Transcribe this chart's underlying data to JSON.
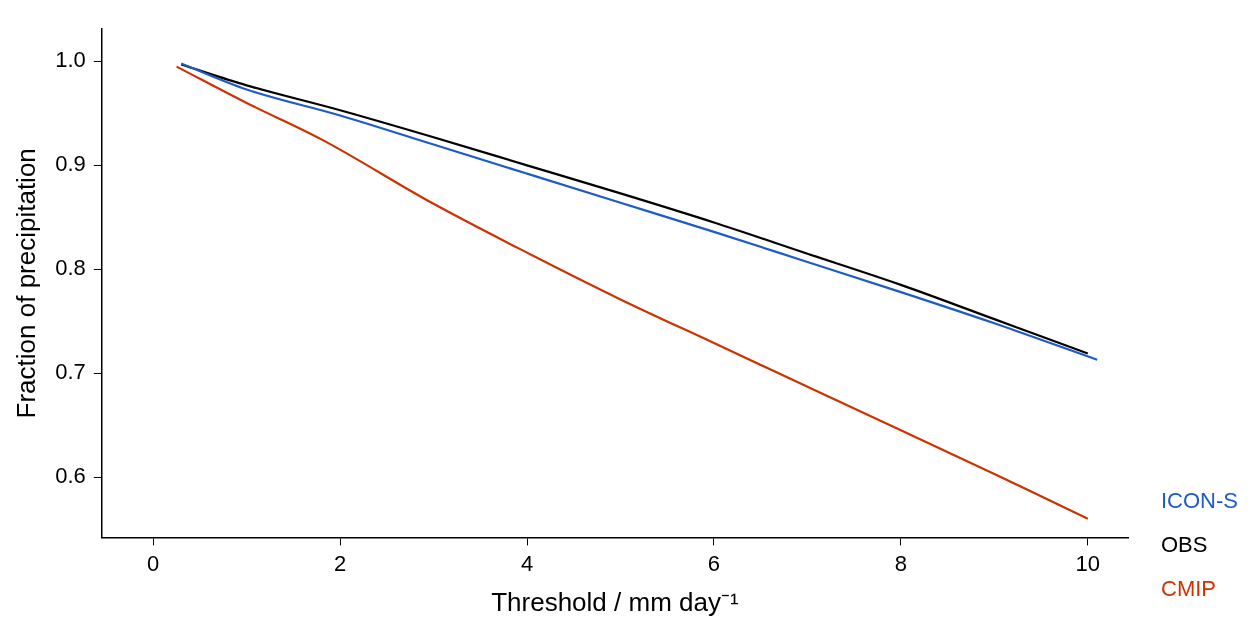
{
  "chart_data": {
    "type": "line",
    "xlabel": "Threshold / mm day⁻¹",
    "ylabel": "Fraction of precipitation",
    "xlim": [
      -0.55,
      10.43
    ],
    "ylim": [
      0.542,
      1.031
    ],
    "xticks": [
      0,
      2,
      4,
      6,
      8,
      10
    ],
    "yticks": [
      {
        "value": 0.6,
        "label": "0.6"
      },
      {
        "value": 0.7,
        "label": "0.7"
      },
      {
        "value": 0.8,
        "label": "0.8"
      },
      {
        "value": 0.9,
        "label": "0.9"
      },
      {
        "value": 1,
        "label": "1.0"
      }
    ],
    "grid": false,
    "legend": "right",
    "marker": "none",
    "line_style": "solid",
    "series": [
      {
        "name": "ICON-S",
        "color": "#1f5bc4",
        "x": [
          0.3,
          1,
          2,
          3,
          4,
          5,
          6,
          7,
          8,
          9,
          10.1
        ],
        "values": [
          0.998,
          0.973,
          0.948,
          0.92,
          0.892,
          0.864,
          0.836,
          0.807,
          0.778,
          0.748,
          0.713
        ]
      },
      {
        "name": "OBS",
        "color": "#000000",
        "x": [
          0.3,
          1,
          2,
          3,
          4,
          5,
          6,
          7,
          8,
          9,
          10
        ],
        "values": [
          0.997,
          0.977,
          0.953,
          0.927,
          0.9,
          0.873,
          0.845,
          0.815,
          0.785,
          0.752,
          0.719
        ]
      },
      {
        "name": "CMIP",
        "color": "#cc3300",
        "x": [
          0.25,
          1,
          1.8,
          3,
          4,
          5,
          6,
          7,
          8,
          9,
          10
        ],
        "values": [
          0.995,
          0.96,
          0.925,
          0.863,
          0.816,
          0.771,
          0.729,
          0.687,
          0.645,
          0.603,
          0.56
        ]
      }
    ]
  }
}
